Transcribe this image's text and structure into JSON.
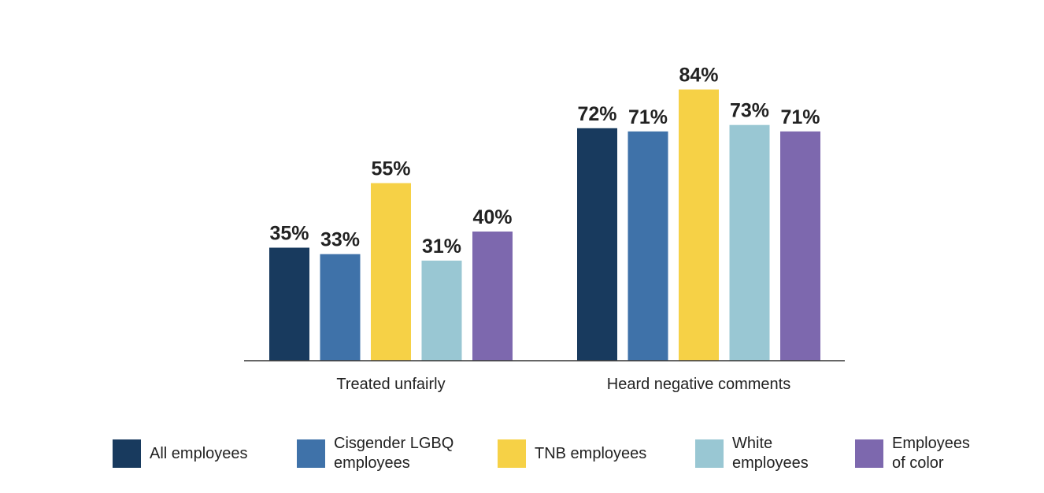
{
  "chart_data": {
    "type": "bar",
    "categories": [
      "Treated unfairly",
      "Heard negative comments"
    ],
    "series": [
      {
        "name": "All employees",
        "color": "#183a5e",
        "values": [
          35,
          72
        ]
      },
      {
        "name": "Cisgender LGBQ employees",
        "color": "#3f72a9",
        "values": [
          33,
          71
        ]
      },
      {
        "name": "TNB employees",
        "color": "#f6d146",
        "values": [
          55,
          84
        ]
      },
      {
        "name": "White employees",
        "color": "#99c7d3",
        "values": [
          31,
          73
        ]
      },
      {
        "name": "Employees of color",
        "color": "#7d68ae",
        "values": [
          40,
          71
        ]
      }
    ],
    "value_suffix": "%",
    "ylim": [
      0,
      100
    ],
    "legend_position": "bottom",
    "grid": false
  },
  "legend": [
    {
      "lines": [
        "All employees"
      ]
    },
    {
      "lines": [
        "Cisgender LGBQ",
        "employees"
      ]
    },
    {
      "lines": [
        "TNB employees"
      ]
    },
    {
      "lines": [
        "White",
        "employees"
      ]
    },
    {
      "lines": [
        "Employees",
        "of color"
      ]
    }
  ]
}
